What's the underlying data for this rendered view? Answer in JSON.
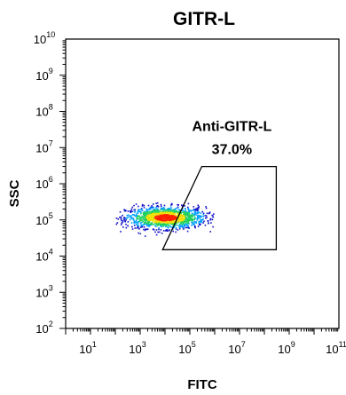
{
  "chart_data": {
    "type": "scatter",
    "title": "GITR-L",
    "xlabel": "FITC",
    "ylabel": "SSC",
    "x_scale": "log",
    "y_scale": "log",
    "xlim": [
      1,
      100000000000
    ],
    "ylim": [
      100,
      10000000000
    ],
    "x_ticks": [
      {
        "base": "10",
        "exp": "1",
        "value": 10
      },
      {
        "base": "10",
        "exp": "3",
        "value": 1000
      },
      {
        "base": "10",
        "exp": "5",
        "value": 100000
      },
      {
        "base": "10",
        "exp": "7",
        "value": 10000000
      },
      {
        "base": "10",
        "exp": "9",
        "value": 1000000000
      },
      {
        "base": "10",
        "exp": "11",
        "value": 100000000000
      }
    ],
    "y_ticks": [
      {
        "base": "10",
        "exp": "2",
        "value": 100
      },
      {
        "base": "10",
        "exp": "3",
        "value": 1000
      },
      {
        "base": "10",
        "exp": "4",
        "value": 10000
      },
      {
        "base": "10",
        "exp": "5",
        "value": 100000
      },
      {
        "base": "10",
        "exp": "6",
        "value": 1000000
      },
      {
        "base": "10",
        "exp": "7",
        "value": 10000000
      },
      {
        "base": "10",
        "exp": "8",
        "value": 100000000
      },
      {
        "base": "10",
        "exp": "9",
        "value": 1000000000
      },
      {
        "base": "10",
        "exp": "10",
        "value": 10000000000
      }
    ],
    "population": {
      "x_range": [
        100,
        1000000
      ],
      "y_range": [
        50000,
        200000
      ],
      "center": [
        10000,
        120000
      ],
      "density_colors": [
        "#1010c8",
        "#00a0ff",
        "#20d060",
        "#f0e000",
        "#ff2000"
      ]
    },
    "gate": {
      "name": "Anti-GITR-L",
      "percent": "37.0%",
      "vertices": [
        [
          8000,
          15000
        ],
        [
          300000,
          3000000
        ],
        [
          300000000,
          3000000
        ],
        [
          300000000,
          15000
        ]
      ]
    },
    "grid": false,
    "legend": "none"
  }
}
